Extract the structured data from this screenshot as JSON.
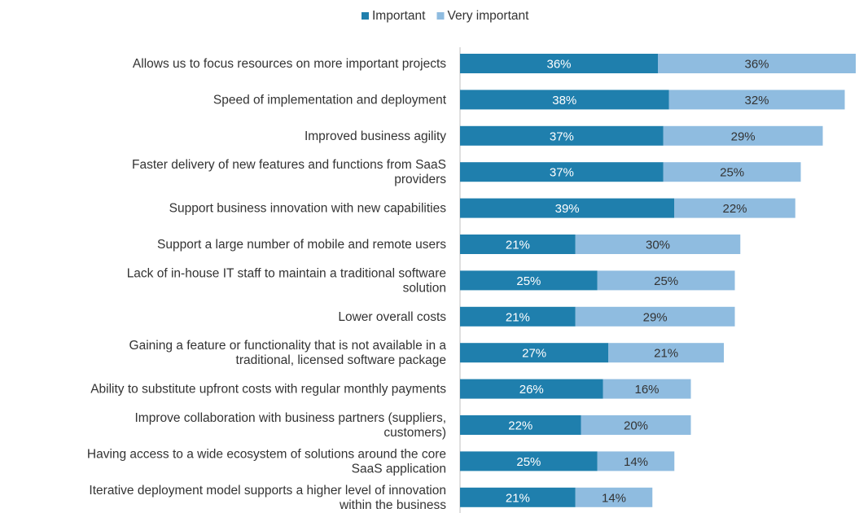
{
  "chart_data": {
    "type": "bar",
    "orientation": "horizontal",
    "stacked": true,
    "categories": [
      [
        "Allows us to focus resources on more important projects"
      ],
      [
        "Speed of implementation and deployment"
      ],
      [
        "Improved business agility"
      ],
      [
        "Faster delivery of new features and functions from SaaS",
        "providers"
      ],
      [
        "Support business innovation with new capabilities"
      ],
      [
        "Support a large number of mobile and remote users"
      ],
      [
        "Lack of in-house IT staff to maintain a traditional software",
        "solution"
      ],
      [
        "Lower overall costs"
      ],
      [
        "Gaining a feature or functionality that is not available in a",
        "traditional, licensed software package"
      ],
      [
        "Ability to substitute upfront costs with regular monthly payments"
      ],
      [
        "Improve collaboration with business partners (suppliers,",
        "customers)"
      ],
      [
        "Having access to a wide ecosystem of solutions around the core",
        "SaaS application"
      ],
      [
        "Iterative deployment model supports a higher level of innovation",
        "within the business"
      ]
    ],
    "series": [
      {
        "name": "Important",
        "color": "#1f7fad",
        "values": [
          36,
          38,
          37,
          37,
          39,
          21,
          25,
          21,
          27,
          26,
          22,
          25,
          21
        ]
      },
      {
        "name": "Very important",
        "color": "#8fbce0",
        "values": [
          36,
          32,
          29,
          25,
          22,
          30,
          25,
          29,
          21,
          16,
          20,
          14,
          14
        ]
      }
    ],
    "data_labels": [
      [
        "36%",
        "38%",
        "37%",
        "37%",
        "39%",
        "21%",
        "25%",
        "21%",
        "27%",
        "26%",
        "22%",
        "25%",
        "21%"
      ],
      [
        "36%",
        "32%",
        "29%",
        "25%",
        "22%",
        "30%",
        "25%",
        "29%",
        "21%",
        "16%",
        "20%",
        "14%",
        "14%"
      ]
    ],
    "legend_position": "top-center",
    "grid": false,
    "xlim": [
      0,
      72
    ]
  }
}
